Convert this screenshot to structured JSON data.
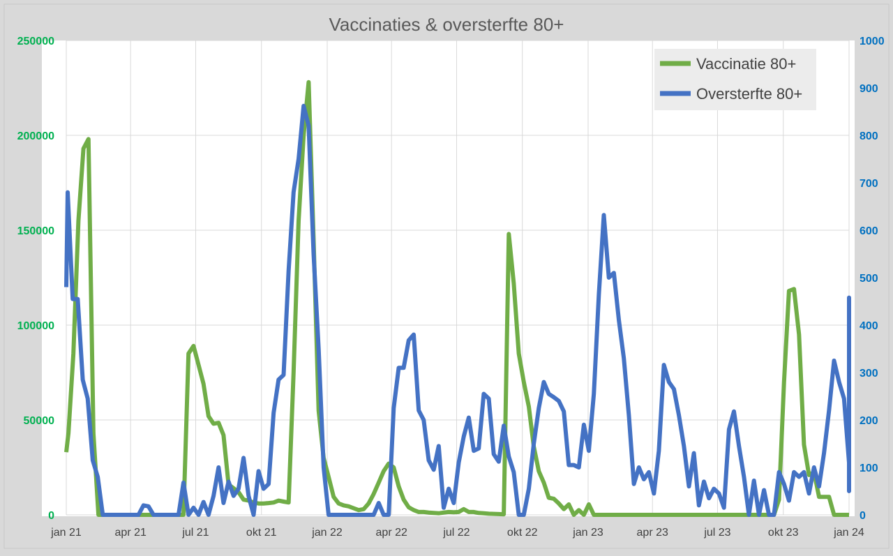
{
  "chart_data": {
    "type": "line",
    "title": "Vaccinaties & oversterfte 80+",
    "x_tick_labels": [
      "jan 21",
      "apr 21",
      "jul 21",
      "okt 21",
      "jan 22",
      "apr 22",
      "jul 22",
      "okt 22",
      "jan 23",
      "apr 23",
      "jul 23",
      "okt 23",
      "jan 24"
    ],
    "x_tick_dates": [
      "2021-01-01",
      "2021-04-01",
      "2021-07-01",
      "2021-10-01",
      "2022-01-01",
      "2022-04-01",
      "2022-07-01",
      "2022-10-01",
      "2023-01-01",
      "2023-04-01",
      "2023-07-01",
      "2023-10-01",
      "2024-01-01"
    ],
    "xlim": [
      "2021-01-01",
      "2024-01-01"
    ],
    "y_left": {
      "ylim": [
        0,
        250000
      ],
      "ticks": [
        "0",
        "50000",
        "100000",
        "150000",
        "200000",
        "250000"
      ],
      "tick_color": "#00b050"
    },
    "y_right": {
      "ylim": [
        0,
        1000
      ],
      "ticks": [
        "0",
        "100",
        "200",
        "300",
        "400",
        "500",
        "600",
        "700",
        "800",
        "900",
        "1000"
      ],
      "tick_color": "#0070c0"
    },
    "grid": true,
    "legend_position": "top-right",
    "series": [
      {
        "name": "Vaccinatie 80+",
        "color": "#70ad47",
        "axis": "left",
        "points": [
          [
            "2021-01-01",
            33000
          ],
          [
            "2021-01-04",
            43000
          ],
          [
            "2021-01-11",
            85000
          ],
          [
            "2021-01-18",
            155000
          ],
          [
            "2021-01-25",
            193000
          ],
          [
            "2021-02-01",
            198000
          ],
          [
            "2021-02-08",
            43000
          ],
          [
            "2021-02-15",
            0
          ],
          [
            "2021-06-14",
            0
          ],
          [
            "2021-06-21",
            85000
          ],
          [
            "2021-06-28",
            89000
          ],
          [
            "2021-07-05",
            79000
          ],
          [
            "2021-07-12",
            69000
          ],
          [
            "2021-07-19",
            52000
          ],
          [
            "2021-07-26",
            48000
          ],
          [
            "2021-08-02",
            48500
          ],
          [
            "2021-08-09",
            42000
          ],
          [
            "2021-08-16",
            16000
          ],
          [
            "2021-08-23",
            14000
          ],
          [
            "2021-08-30",
            12000
          ],
          [
            "2021-09-06",
            8000
          ],
          [
            "2021-09-13",
            7500
          ],
          [
            "2021-09-20",
            6500
          ],
          [
            "2021-09-27",
            6000
          ],
          [
            "2021-10-04",
            6000
          ],
          [
            "2021-10-11",
            6200
          ],
          [
            "2021-10-18",
            6500
          ],
          [
            "2021-10-25",
            7500
          ],
          [
            "2021-11-01",
            7000
          ],
          [
            "2021-11-08",
            6500
          ],
          [
            "2021-11-15",
            75000
          ],
          [
            "2021-11-22",
            155000
          ],
          [
            "2021-11-29",
            200000
          ],
          [
            "2021-12-06",
            228000
          ],
          [
            "2021-12-13",
            145000
          ],
          [
            "2021-12-20",
            55000
          ],
          [
            "2021-12-27",
            30000
          ],
          [
            "2022-01-03",
            20000
          ],
          [
            "2022-01-10",
            9500
          ],
          [
            "2022-01-17",
            6000
          ],
          [
            "2022-01-24",
            5000
          ],
          [
            "2022-01-31",
            4500
          ],
          [
            "2022-02-07",
            3500
          ],
          [
            "2022-02-14",
            2500
          ],
          [
            "2022-02-21",
            3000
          ],
          [
            "2022-02-28",
            6000
          ],
          [
            "2022-03-07",
            11000
          ],
          [
            "2022-03-14",
            17000
          ],
          [
            "2022-03-21",
            23000
          ],
          [
            "2022-03-28",
            27000
          ],
          [
            "2022-04-04",
            25000
          ],
          [
            "2022-04-11",
            15000
          ],
          [
            "2022-04-18",
            8000
          ],
          [
            "2022-04-25",
            4000
          ],
          [
            "2022-05-02",
            2500
          ],
          [
            "2022-05-09",
            1500
          ],
          [
            "2022-05-16",
            1500
          ],
          [
            "2022-05-23",
            1200
          ],
          [
            "2022-05-30",
            1000
          ],
          [
            "2022-06-06",
            800
          ],
          [
            "2022-06-13",
            1200
          ],
          [
            "2022-06-20",
            1500
          ],
          [
            "2022-06-27",
            1400
          ],
          [
            "2022-07-04",
            1500
          ],
          [
            "2022-07-11",
            3000
          ],
          [
            "2022-07-18",
            1500
          ],
          [
            "2022-07-25",
            1500
          ],
          [
            "2022-08-01",
            1000
          ],
          [
            "2022-08-08",
            800
          ],
          [
            "2022-08-15",
            600
          ],
          [
            "2022-08-22",
            500
          ],
          [
            "2022-08-29",
            400
          ],
          [
            "2022-09-05",
            300
          ],
          [
            "2022-09-12",
            148000
          ],
          [
            "2022-09-19",
            122000
          ],
          [
            "2022-09-26",
            85000
          ],
          [
            "2022-10-03",
            70000
          ],
          [
            "2022-10-10",
            57000
          ],
          [
            "2022-10-17",
            36000
          ],
          [
            "2022-10-24",
            23000
          ],
          [
            "2022-10-31",
            17000
          ],
          [
            "2022-11-07",
            9000
          ],
          [
            "2022-11-14",
            8500
          ],
          [
            "2022-11-21",
            6000
          ],
          [
            "2022-11-28",
            3000
          ],
          [
            "2022-12-05",
            5500
          ],
          [
            "2022-12-12",
            0
          ],
          [
            "2022-12-19",
            2500
          ],
          [
            "2022-12-26",
            0
          ],
          [
            "2023-01-02",
            5500
          ],
          [
            "2023-01-09",
            0
          ],
          [
            "2023-09-18",
            0
          ],
          [
            "2023-09-25",
            8000
          ],
          [
            "2023-10-02",
            70000
          ],
          [
            "2023-10-09",
            118000
          ],
          [
            "2023-10-16",
            119000
          ],
          [
            "2023-10-23",
            95000
          ],
          [
            "2023-10-30",
            37000
          ],
          [
            "2023-11-06",
            21000
          ],
          [
            "2023-11-13",
            22500
          ],
          [
            "2023-11-20",
            9500
          ],
          [
            "2023-11-27",
            9500
          ],
          [
            "2023-12-04",
            9500
          ],
          [
            "2023-12-11",
            0
          ],
          [
            "2024-01-01",
            0
          ]
        ]
      },
      {
        "name": "Oversterfte 80+",
        "color": "#4472c4",
        "axis": "right",
        "points": [
          [
            "2021-01-01",
            480
          ],
          [
            "2021-01-03",
            680
          ],
          [
            "2021-01-10",
            455
          ],
          [
            "2021-01-17",
            455
          ],
          [
            "2021-01-24",
            285
          ],
          [
            "2021-01-31",
            245
          ],
          [
            "2021-02-07",
            115
          ],
          [
            "2021-02-14",
            80
          ],
          [
            "2021-02-21",
            0
          ],
          [
            "2021-04-12",
            0
          ],
          [
            "2021-04-19",
            20
          ],
          [
            "2021-04-26",
            18
          ],
          [
            "2021-05-03",
            0
          ],
          [
            "2021-06-07",
            0
          ],
          [
            "2021-06-14",
            68
          ],
          [
            "2021-06-21",
            0
          ],
          [
            "2021-06-28",
            15
          ],
          [
            "2021-07-05",
            0
          ],
          [
            "2021-07-12",
            27
          ],
          [
            "2021-07-19",
            0
          ],
          [
            "2021-07-26",
            40
          ],
          [
            "2021-08-02",
            100
          ],
          [
            "2021-08-09",
            25
          ],
          [
            "2021-08-16",
            70
          ],
          [
            "2021-08-23",
            40
          ],
          [
            "2021-08-30",
            55
          ],
          [
            "2021-09-06",
            120
          ],
          [
            "2021-09-13",
            40
          ],
          [
            "2021-09-20",
            0
          ],
          [
            "2021-09-27",
            92
          ],
          [
            "2021-10-04",
            55
          ],
          [
            "2021-10-11",
            65
          ],
          [
            "2021-10-18",
            215
          ],
          [
            "2021-10-25",
            285
          ],
          [
            "2021-11-01",
            295
          ],
          [
            "2021-11-08",
            515
          ],
          [
            "2021-11-15",
            680
          ],
          [
            "2021-11-22",
            750
          ],
          [
            "2021-11-29",
            862
          ],
          [
            "2021-12-06",
            820
          ],
          [
            "2021-12-13",
            550
          ],
          [
            "2021-12-20",
            350
          ],
          [
            "2021-12-27",
            100
          ],
          [
            "2022-01-03",
            0
          ],
          [
            "2022-03-07",
            0
          ],
          [
            "2022-03-14",
            25
          ],
          [
            "2022-03-21",
            0
          ],
          [
            "2022-03-28",
            0
          ],
          [
            "2022-04-04",
            225
          ],
          [
            "2022-04-11",
            310
          ],
          [
            "2022-04-18",
            310
          ],
          [
            "2022-04-25",
            368
          ],
          [
            "2022-05-02",
            380
          ],
          [
            "2022-05-09",
            220
          ],
          [
            "2022-05-16",
            200
          ],
          [
            "2022-05-23",
            115
          ],
          [
            "2022-05-30",
            95
          ],
          [
            "2022-06-06",
            145
          ],
          [
            "2022-06-13",
            15
          ],
          [
            "2022-06-20",
            55
          ],
          [
            "2022-06-27",
            25
          ],
          [
            "2022-07-04",
            110
          ],
          [
            "2022-07-11",
            165
          ],
          [
            "2022-07-18",
            205
          ],
          [
            "2022-07-25",
            135
          ],
          [
            "2022-08-01",
            140
          ],
          [
            "2022-08-08",
            255
          ],
          [
            "2022-08-15",
            245
          ],
          [
            "2022-08-22",
            128
          ],
          [
            "2022-08-29",
            112
          ],
          [
            "2022-09-05",
            188
          ],
          [
            "2022-09-12",
            123
          ],
          [
            "2022-09-19",
            90
          ],
          [
            "2022-09-26",
            0
          ],
          [
            "2022-10-03",
            0
          ],
          [
            "2022-10-10",
            55
          ],
          [
            "2022-10-17",
            150
          ],
          [
            "2022-10-24",
            225
          ],
          [
            "2022-10-31",
            280
          ],
          [
            "2022-11-07",
            255
          ],
          [
            "2022-11-14",
            248
          ],
          [
            "2022-11-21",
            240
          ],
          [
            "2022-11-28",
            218
          ],
          [
            "2022-12-05",
            105
          ],
          [
            "2022-12-12",
            105
          ],
          [
            "2022-12-19",
            100
          ],
          [
            "2022-12-26",
            190
          ],
          [
            "2023-01-02",
            135
          ],
          [
            "2023-01-09",
            255
          ],
          [
            "2023-01-16",
            465
          ],
          [
            "2023-01-23",
            632
          ],
          [
            "2023-01-30",
            500
          ],
          [
            "2023-02-06",
            510
          ],
          [
            "2023-02-13",
            410
          ],
          [
            "2023-02-20",
            330
          ],
          [
            "2023-02-27",
            210
          ],
          [
            "2023-03-06",
            65
          ],
          [
            "2023-03-13",
            100
          ],
          [
            "2023-03-20",
            75
          ],
          [
            "2023-03-27",
            90
          ],
          [
            "2023-04-03",
            45
          ],
          [
            "2023-04-10",
            135
          ],
          [
            "2023-04-17",
            316
          ],
          [
            "2023-04-24",
            280
          ],
          [
            "2023-05-01",
            265
          ],
          [
            "2023-05-08",
            210
          ],
          [
            "2023-05-15",
            145
          ],
          [
            "2023-05-22",
            60
          ],
          [
            "2023-05-29",
            130
          ],
          [
            "2023-06-05",
            20
          ],
          [
            "2023-06-12",
            70
          ],
          [
            "2023-06-19",
            35
          ],
          [
            "2023-06-26",
            55
          ],
          [
            "2023-07-03",
            45
          ],
          [
            "2023-07-10",
            15
          ],
          [
            "2023-07-17",
            180
          ],
          [
            "2023-07-24",
            218
          ],
          [
            "2023-07-31",
            145
          ],
          [
            "2023-08-07",
            80
          ],
          [
            "2023-08-14",
            0
          ],
          [
            "2023-08-21",
            72
          ],
          [
            "2023-08-28",
            0
          ],
          [
            "2023-09-04",
            52
          ],
          [
            "2023-09-11",
            0
          ],
          [
            "2023-09-18",
            0
          ],
          [
            "2023-09-25",
            90
          ],
          [
            "2023-10-02",
            65
          ],
          [
            "2023-10-09",
            30
          ],
          [
            "2023-10-16",
            90
          ],
          [
            "2023-10-23",
            80
          ],
          [
            "2023-10-30",
            90
          ],
          [
            "2023-11-06",
            45
          ],
          [
            "2023-11-13",
            100
          ],
          [
            "2023-11-20",
            60
          ],
          [
            "2023-11-27",
            130
          ],
          [
            "2023-12-04",
            220
          ],
          [
            "2023-12-11",
            325
          ],
          [
            "2023-12-18",
            280
          ],
          [
            "2023-12-25",
            245
          ],
          [
            "2024-01-01",
            110
          ],
          [
            "2024-01-08",
            260
          ],
          [
            "2024-01-15",
            325
          ],
          [
            "2024-01-22",
            288
          ],
          [
            "2024-01-29",
            458
          ],
          [
            "2024-02-05",
            50
          ],
          [
            "2024-02-12",
            275
          ],
          [
            "2024-02-19",
            220
          ]
        ]
      }
    ]
  }
}
